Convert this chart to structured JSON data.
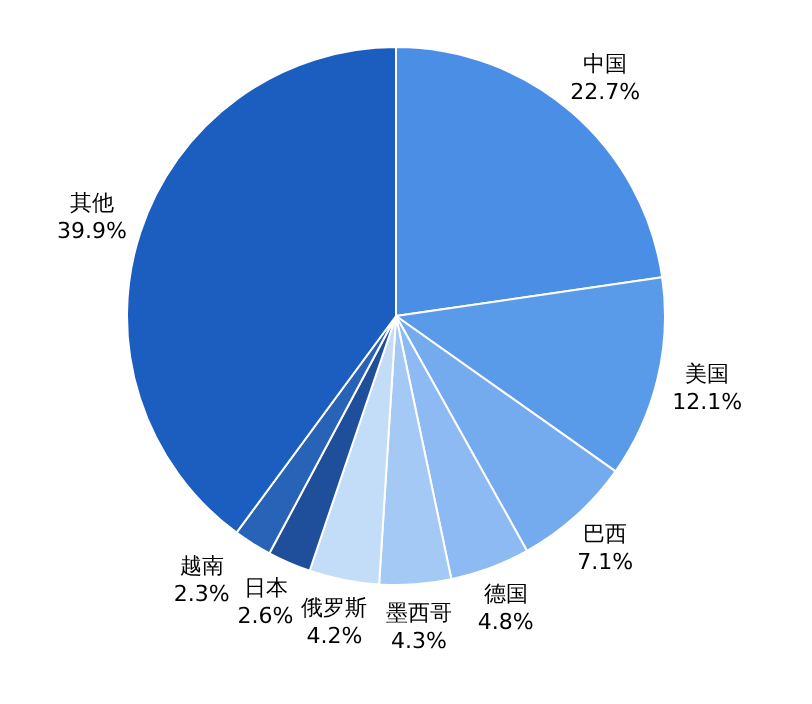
{
  "chart_data": {
    "type": "pie",
    "categories": [
      "中国",
      "美国",
      "巴西",
      "德国",
      "墨西哥",
      "俄罗斯",
      "日本",
      "越南",
      "其他"
    ],
    "values": [
      22.7,
      12.1,
      7.1,
      4.8,
      4.3,
      4.2,
      2.6,
      2.3,
      39.9
    ],
    "value_labels": [
      "22.7%",
      "12.1%",
      "7.1%",
      "4.8%",
      "4.3%",
      "4.2%",
      "2.6%",
      "2.3%",
      "39.9%"
    ],
    "colors": [
      "#4a8ee6",
      "#5a9be9",
      "#74aaee",
      "#8dbaf2",
      "#a5c9f5",
      "#c3dcf8",
      "#1f4e9a",
      "#2963b8",
      "#1c5ec0"
    ],
    "legend": false
  }
}
